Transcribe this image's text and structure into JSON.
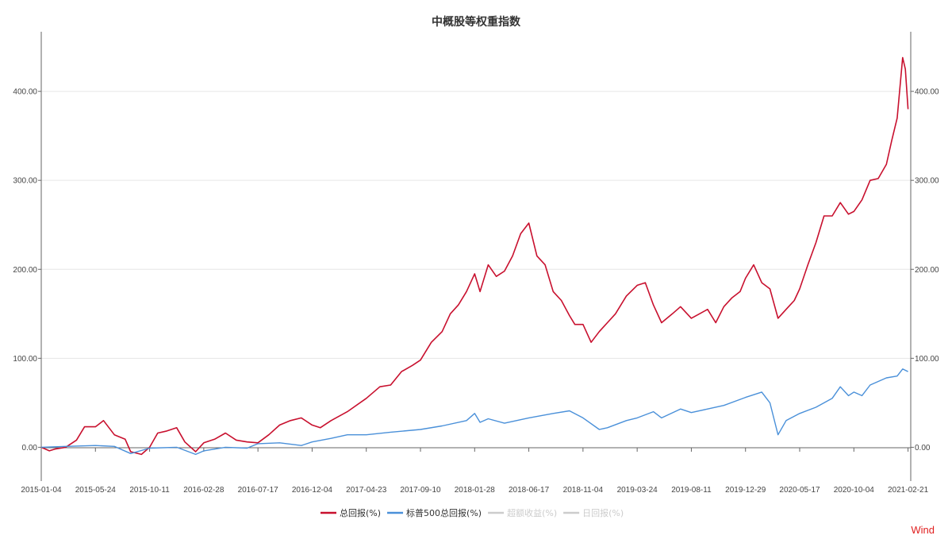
{
  "chart_data": {
    "type": "line",
    "title": "中概股等权重指数",
    "xlabel": "",
    "ylabel": "",
    "x_ticks": [
      "2015-01-04",
      "2015-05-24",
      "2015-10-11",
      "2016-02-28",
      "2016-07-17",
      "2016-12-04",
      "2017-04-23",
      "2017-09-10",
      "2018-01-28",
      "2018-06-17",
      "2018-11-04",
      "2019-03-24",
      "2019-08-11",
      "2019-12-29",
      "2020-05-17",
      "2020-10-04",
      "2021-02-21"
    ],
    "y_ticks": [
      "0.00",
      "100.00",
      "200.00",
      "300.00",
      "400.00"
    ],
    "ylim": [
      -38,
      467
    ],
    "xlim": [
      "2015-01-04",
      "2021-02-28"
    ],
    "grid": true,
    "legend_position": "bottom-center",
    "series": [
      {
        "name": "总回报(%)",
        "color": "#c8102e",
        "active": true,
        "points": [
          [
            "2015-01-04",
            0
          ],
          [
            "2015-01-25",
            -4
          ],
          [
            "2015-02-08",
            -2
          ],
          [
            "2015-03-08",
            0
          ],
          [
            "2015-04-05",
            8
          ],
          [
            "2015-04-26",
            23
          ],
          [
            "2015-05-24",
            23
          ],
          [
            "2015-06-14",
            30
          ],
          [
            "2015-07-12",
            14
          ],
          [
            "2015-08-09",
            9
          ],
          [
            "2015-08-23",
            -5
          ],
          [
            "2015-09-20",
            -8
          ],
          [
            "2015-10-11",
            0
          ],
          [
            "2015-11-01",
            16
          ],
          [
            "2015-11-22",
            18
          ],
          [
            "2015-12-20",
            22
          ],
          [
            "2016-01-10",
            6
          ],
          [
            "2016-02-07",
            -5
          ],
          [
            "2016-02-28",
            5
          ],
          [
            "2016-03-27",
            9
          ],
          [
            "2016-04-24",
            16
          ],
          [
            "2016-05-22",
            8
          ],
          [
            "2016-06-19",
            6
          ],
          [
            "2016-07-17",
            5
          ],
          [
            "2016-08-14",
            14
          ],
          [
            "2016-09-11",
            25
          ],
          [
            "2016-10-09",
            30
          ],
          [
            "2016-11-06",
            33
          ],
          [
            "2016-12-04",
            25
          ],
          [
            "2016-12-25",
            22
          ],
          [
            "2017-01-22",
            30
          ],
          [
            "2017-03-05",
            40
          ],
          [
            "2017-04-23",
            55
          ],
          [
            "2017-05-28",
            68
          ],
          [
            "2017-06-25",
            70
          ],
          [
            "2017-07-23",
            85
          ],
          [
            "2017-08-20",
            92
          ],
          [
            "2017-09-10",
            98
          ],
          [
            "2017-10-08",
            118
          ],
          [
            "2017-11-05",
            130
          ],
          [
            "2017-11-26",
            150
          ],
          [
            "2017-12-17",
            160
          ],
          [
            "2018-01-07",
            175
          ],
          [
            "2018-01-28",
            195
          ],
          [
            "2018-02-11",
            175
          ],
          [
            "2018-03-04",
            205
          ],
          [
            "2018-03-25",
            192
          ],
          [
            "2018-04-15",
            198
          ],
          [
            "2018-05-06",
            215
          ],
          [
            "2018-05-27",
            240
          ],
          [
            "2018-06-17",
            252
          ],
          [
            "2018-07-08",
            215
          ],
          [
            "2018-07-29",
            205
          ],
          [
            "2018-08-19",
            175
          ],
          [
            "2018-09-09",
            165
          ],
          [
            "2018-09-30",
            148
          ],
          [
            "2018-10-14",
            138
          ],
          [
            "2018-11-04",
            138
          ],
          [
            "2018-11-25",
            118
          ],
          [
            "2018-12-16",
            130
          ],
          [
            "2019-01-06",
            140
          ],
          [
            "2019-01-27",
            150
          ],
          [
            "2019-02-24",
            170
          ],
          [
            "2019-03-24",
            182
          ],
          [
            "2019-04-14",
            185
          ],
          [
            "2019-05-05",
            160
          ],
          [
            "2019-05-26",
            140
          ],
          [
            "2019-06-23",
            150
          ],
          [
            "2019-07-14",
            158
          ],
          [
            "2019-08-11",
            145
          ],
          [
            "2019-09-01",
            150
          ],
          [
            "2019-09-22",
            155
          ],
          [
            "2019-10-13",
            140
          ],
          [
            "2019-11-03",
            158
          ],
          [
            "2019-11-24",
            168
          ],
          [
            "2019-12-15",
            175
          ],
          [
            "2019-12-29",
            190
          ],
          [
            "2020-01-19",
            205
          ],
          [
            "2020-02-09",
            185
          ],
          [
            "2020-03-01",
            178
          ],
          [
            "2020-03-22",
            145
          ],
          [
            "2020-04-12",
            155
          ],
          [
            "2020-05-03",
            165
          ],
          [
            "2020-05-17",
            178
          ],
          [
            "2020-06-07",
            205
          ],
          [
            "2020-06-28",
            230
          ],
          [
            "2020-07-19",
            260
          ],
          [
            "2020-08-09",
            260
          ],
          [
            "2020-08-30",
            275
          ],
          [
            "2020-09-20",
            262
          ],
          [
            "2020-10-04",
            265
          ],
          [
            "2020-10-25",
            278
          ],
          [
            "2020-11-15",
            300
          ],
          [
            "2020-12-06",
            302
          ],
          [
            "2020-12-27",
            318
          ],
          [
            "2021-01-10",
            345
          ],
          [
            "2021-01-24",
            370
          ],
          [
            "2021-02-07",
            438
          ],
          [
            "2021-02-14",
            425
          ],
          [
            "2021-02-21",
            380
          ]
        ]
      },
      {
        "name": "标普500总回报(%)",
        "color": "#4a90d9",
        "active": true,
        "points": [
          [
            "2015-01-04",
            0
          ],
          [
            "2015-03-08",
            1
          ],
          [
            "2015-05-24",
            2
          ],
          [
            "2015-07-12",
            1
          ],
          [
            "2015-08-23",
            -7
          ],
          [
            "2015-10-11",
            -1
          ],
          [
            "2015-12-20",
            0
          ],
          [
            "2016-02-07",
            -8
          ],
          [
            "2016-02-28",
            -4
          ],
          [
            "2016-04-24",
            0
          ],
          [
            "2016-06-19",
            -1
          ],
          [
            "2016-07-17",
            4
          ],
          [
            "2016-09-11",
            5
          ],
          [
            "2016-11-06",
            2
          ],
          [
            "2016-12-04",
            6
          ],
          [
            "2017-01-22",
            10
          ],
          [
            "2017-03-05",
            14
          ],
          [
            "2017-04-23",
            14
          ],
          [
            "2017-06-25",
            17
          ],
          [
            "2017-09-10",
            20
          ],
          [
            "2017-11-05",
            24
          ],
          [
            "2018-01-07",
            30
          ],
          [
            "2018-01-28",
            38
          ],
          [
            "2018-02-11",
            28
          ],
          [
            "2018-03-04",
            32
          ],
          [
            "2018-04-15",
            27
          ],
          [
            "2018-06-17",
            33
          ],
          [
            "2018-08-19",
            38
          ],
          [
            "2018-09-30",
            41
          ],
          [
            "2018-11-04",
            33
          ],
          [
            "2018-12-16",
            20
          ],
          [
            "2019-01-06",
            22
          ],
          [
            "2019-02-24",
            30
          ],
          [
            "2019-03-24",
            33
          ],
          [
            "2019-05-05",
            40
          ],
          [
            "2019-05-26",
            33
          ],
          [
            "2019-07-14",
            43
          ],
          [
            "2019-08-11",
            39
          ],
          [
            "2019-09-22",
            43
          ],
          [
            "2019-11-03",
            47
          ],
          [
            "2019-12-29",
            56
          ],
          [
            "2020-02-09",
            62
          ],
          [
            "2020-03-01",
            50
          ],
          [
            "2020-03-22",
            14
          ],
          [
            "2020-04-12",
            30
          ],
          [
            "2020-05-17",
            38
          ],
          [
            "2020-06-28",
            45
          ],
          [
            "2020-08-09",
            55
          ],
          [
            "2020-08-30",
            68
          ],
          [
            "2020-09-20",
            58
          ],
          [
            "2020-10-04",
            62
          ],
          [
            "2020-10-25",
            58
          ],
          [
            "2020-11-15",
            70
          ],
          [
            "2020-12-27",
            78
          ],
          [
            "2021-01-24",
            80
          ],
          [
            "2021-02-07",
            88
          ],
          [
            "2021-02-21",
            85
          ]
        ]
      },
      {
        "name": "超额收益(%)",
        "color": "#cccccc",
        "active": false
      },
      {
        "name": "日回报(%)",
        "color": "#cccccc",
        "active": false
      }
    ]
  },
  "watermark": "Wind"
}
